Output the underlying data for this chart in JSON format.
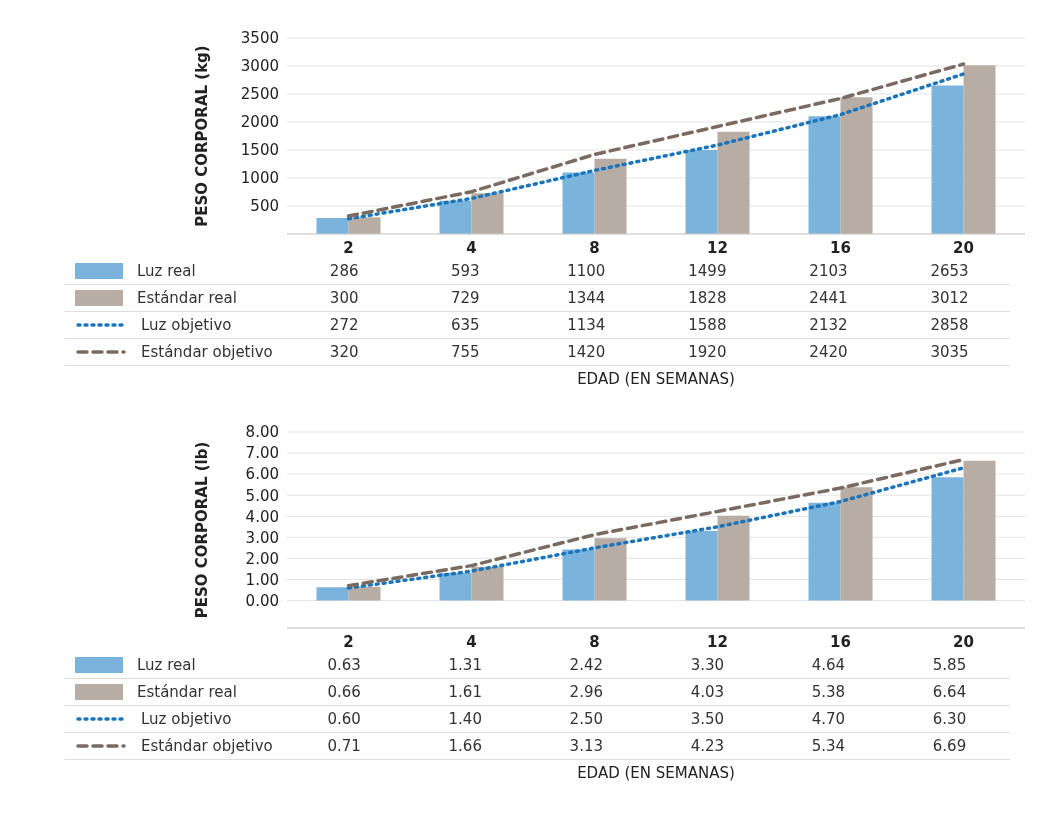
{
  "chart_data": [
    {
      "type": "bar",
      "ylabel": "PESO CORPORAL (kg)",
      "xlabel": "EDAD (EN SEMANAS)",
      "categories": [
        "2",
        "4",
        "8",
        "12",
        "16",
        "20"
      ],
      "ylim": [
        0,
        3500
      ],
      "yticks": [
        500,
        1000,
        1500,
        2000,
        2500,
        3000,
        3500
      ],
      "grid": "y",
      "legend": "bottom",
      "data_labels": true,
      "series": [
        {
          "name": "Luz real",
          "type": "bar",
          "color": "#7ab3dc",
          "values": [
            286,
            593,
            1100,
            1499,
            2103,
            2653
          ]
        },
        {
          "name": "Estándar real",
          "type": "bar",
          "color": "#b8ada5",
          "values": [
            300,
            729,
            1344,
            1828,
            2441,
            3012
          ]
        },
        {
          "name": "Luz objetivo",
          "type": "line",
          "line_style": "dotted",
          "color": "#1a75bc",
          "values": [
            272,
            635,
            1134,
            1588,
            2132,
            2858
          ]
        },
        {
          "name": "Estándar objetivo",
          "type": "line",
          "line_style": "dashed",
          "color": "#7a6a5f",
          "values": [
            320,
            755,
            1420,
            1920,
            2420,
            3035
          ]
        }
      ]
    },
    {
      "type": "bar",
      "ylabel": "PESO CORPORAL (lb)",
      "xlabel": "EDAD (EN SEMANAS)",
      "categories": [
        "2",
        "4",
        "8",
        "12",
        "16",
        "20"
      ],
      "ylim": [
        -1.3,
        8
      ],
      "yticks": [
        {
          "value": 0,
          "label": "0.00"
        },
        {
          "value": 1,
          "label": "1.00"
        },
        {
          "value": 2,
          "label": "2.00"
        },
        {
          "value": 3,
          "label": "3.00"
        },
        {
          "value": 4,
          "label": "4.00"
        },
        {
          "value": 5,
          "label": "5.00"
        },
        {
          "value": 6,
          "label": "6.00"
        },
        {
          "value": 7,
          "label": "7.00"
        },
        {
          "value": 8,
          "label": "8.00"
        }
      ],
      "grid": "y",
      "legend": "bottom",
      "series": [
        {
          "name": "Luz real",
          "type": "bar",
          "color": "#7ab3dc",
          "values": [
            0.63,
            1.31,
            2.42,
            3.3,
            4.64,
            5.85
          ],
          "value_labels": [
            "0.63",
            "1.31",
            "2.42",
            "3.30",
            "4.64",
            "5.85"
          ]
        },
        {
          "name": "Estándar real",
          "type": "bar",
          "color": "#b8ada5",
          "values": [
            0.66,
            1.61,
            2.96,
            4.03,
            5.38,
            6.64
          ],
          "value_labels": [
            "0.66",
            "1.61",
            "2.96",
            "4.03",
            "5.38",
            "6.64"
          ]
        },
        {
          "name": "Luz objetivo",
          "type": "line",
          "line_style": "dotted",
          "color": "#1a75bc",
          "values": [
            0.6,
            1.4,
            2.5,
            3.5,
            4.7,
            6.3
          ],
          "value_labels": [
            "0.60",
            "1.40",
            "2.50",
            "3.50",
            "4.70",
            "6.30"
          ]
        },
        {
          "name": "Estándar objetivo",
          "type": "line",
          "line_style": "dashed",
          "color": "#7a6a5f",
          "values": [
            0.71,
            1.66,
            3.13,
            4.23,
            5.34,
            6.69
          ],
          "value_labels": [
            "0.71",
            "1.66",
            "3.13",
            "4.23",
            "5.34",
            "6.69"
          ]
        }
      ]
    }
  ]
}
